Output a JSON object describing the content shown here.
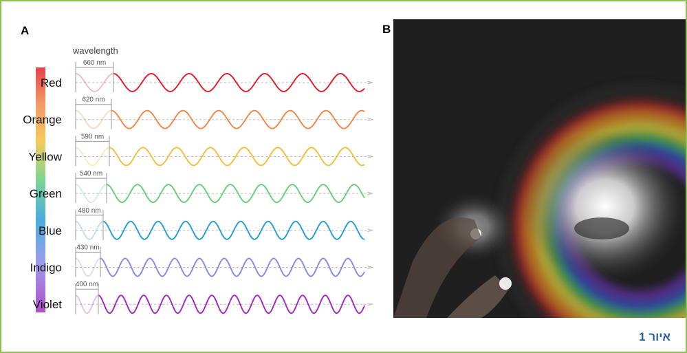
{
  "panel_a": {
    "label": "A",
    "axis_label": "wavelength",
    "rows": [
      {
        "name": "Red",
        "wavelength": "660 nm",
        "color": "#e3202c"
      },
      {
        "name": "Orange",
        "wavelength": "620 nm",
        "color": "#f0894c"
      },
      {
        "name": "Yellow",
        "wavelength": "590 nm",
        "color": "#f4c040"
      },
      {
        "name": "Green",
        "wavelength": "540 nm",
        "color": "#6ccf7c"
      },
      {
        "name": "Blue",
        "wavelength": "480 nm",
        "color": "#2a9fd8"
      },
      {
        "name": "Indigo",
        "wavelength": "430 nm",
        "color": "#8b8be6"
      },
      {
        "name": "Violet",
        "wavelength": "400 nm",
        "color": "#a22ec2"
      }
    ]
  },
  "panel_b": {
    "label": "B"
  },
  "caption": "איור 1"
}
